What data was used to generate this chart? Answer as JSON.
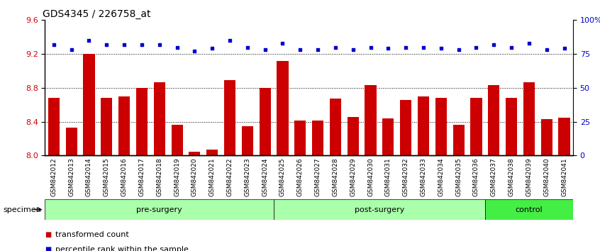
{
  "title": "GDS4345 / 226758_at",
  "samples": [
    "GSM842012",
    "GSM842013",
    "GSM842014",
    "GSM842015",
    "GSM842016",
    "GSM842017",
    "GSM842018",
    "GSM842019",
    "GSM842020",
    "GSM842021",
    "GSM842022",
    "GSM842023",
    "GSM842024",
    "GSM842025",
    "GSM842026",
    "GSM842027",
    "GSM842028",
    "GSM842029",
    "GSM842030",
    "GSM842031",
    "GSM842032",
    "GSM842033",
    "GSM842034",
    "GSM842035",
    "GSM842036",
    "GSM842037",
    "GSM842038",
    "GSM842039",
    "GSM842040",
    "GSM842041"
  ],
  "bar_values": [
    8.68,
    8.33,
    9.2,
    8.68,
    8.7,
    8.8,
    8.87,
    8.36,
    8.05,
    8.07,
    8.89,
    8.35,
    8.8,
    9.12,
    8.41,
    8.41,
    8.67,
    8.46,
    8.83,
    8.44,
    8.66,
    8.7,
    8.68,
    8.36,
    8.68,
    8.83,
    8.68,
    8.87,
    8.43,
    8.45
  ],
  "percentile_values": [
    82,
    78,
    85,
    82,
    82,
    82,
    82,
    80,
    77,
    79,
    85,
    80,
    78,
    83,
    78,
    78,
    80,
    78,
    80,
    79,
    80,
    80,
    79,
    78,
    80,
    82,
    80,
    83,
    78,
    79
  ],
  "groups": [
    {
      "label": "pre-surgery",
      "start": 0,
      "end": 13
    },
    {
      "label": "post-surgery",
      "start": 13,
      "end": 25
    },
    {
      "label": "control",
      "start": 25,
      "end": 30
    }
  ],
  "group_colors": [
    "#aaffaa",
    "#aaffaa",
    "#44ee44"
  ],
  "bar_color": "#CC0000",
  "dot_color": "#0000CC",
  "ylim_left": [
    8.0,
    9.6
  ],
  "ylim_right": [
    0,
    100
  ],
  "yticks_left": [
    8.0,
    8.4,
    8.8,
    9.2,
    9.6
  ],
  "yticks_right": [
    0,
    25,
    50,
    75,
    100
  ],
  "ytick_labels_right": [
    "0",
    "25",
    "50",
    "75",
    "100%"
  ],
  "grid_values": [
    8.4,
    8.8,
    9.2
  ],
  "legend_items": [
    {
      "label": "transformed count",
      "color": "#CC0000"
    },
    {
      "label": "percentile rank within the sample",
      "color": "#0000CC"
    }
  ],
  "specimen_label": "specimen",
  "title_fontsize": 10,
  "tick_fontsize": 6.5
}
